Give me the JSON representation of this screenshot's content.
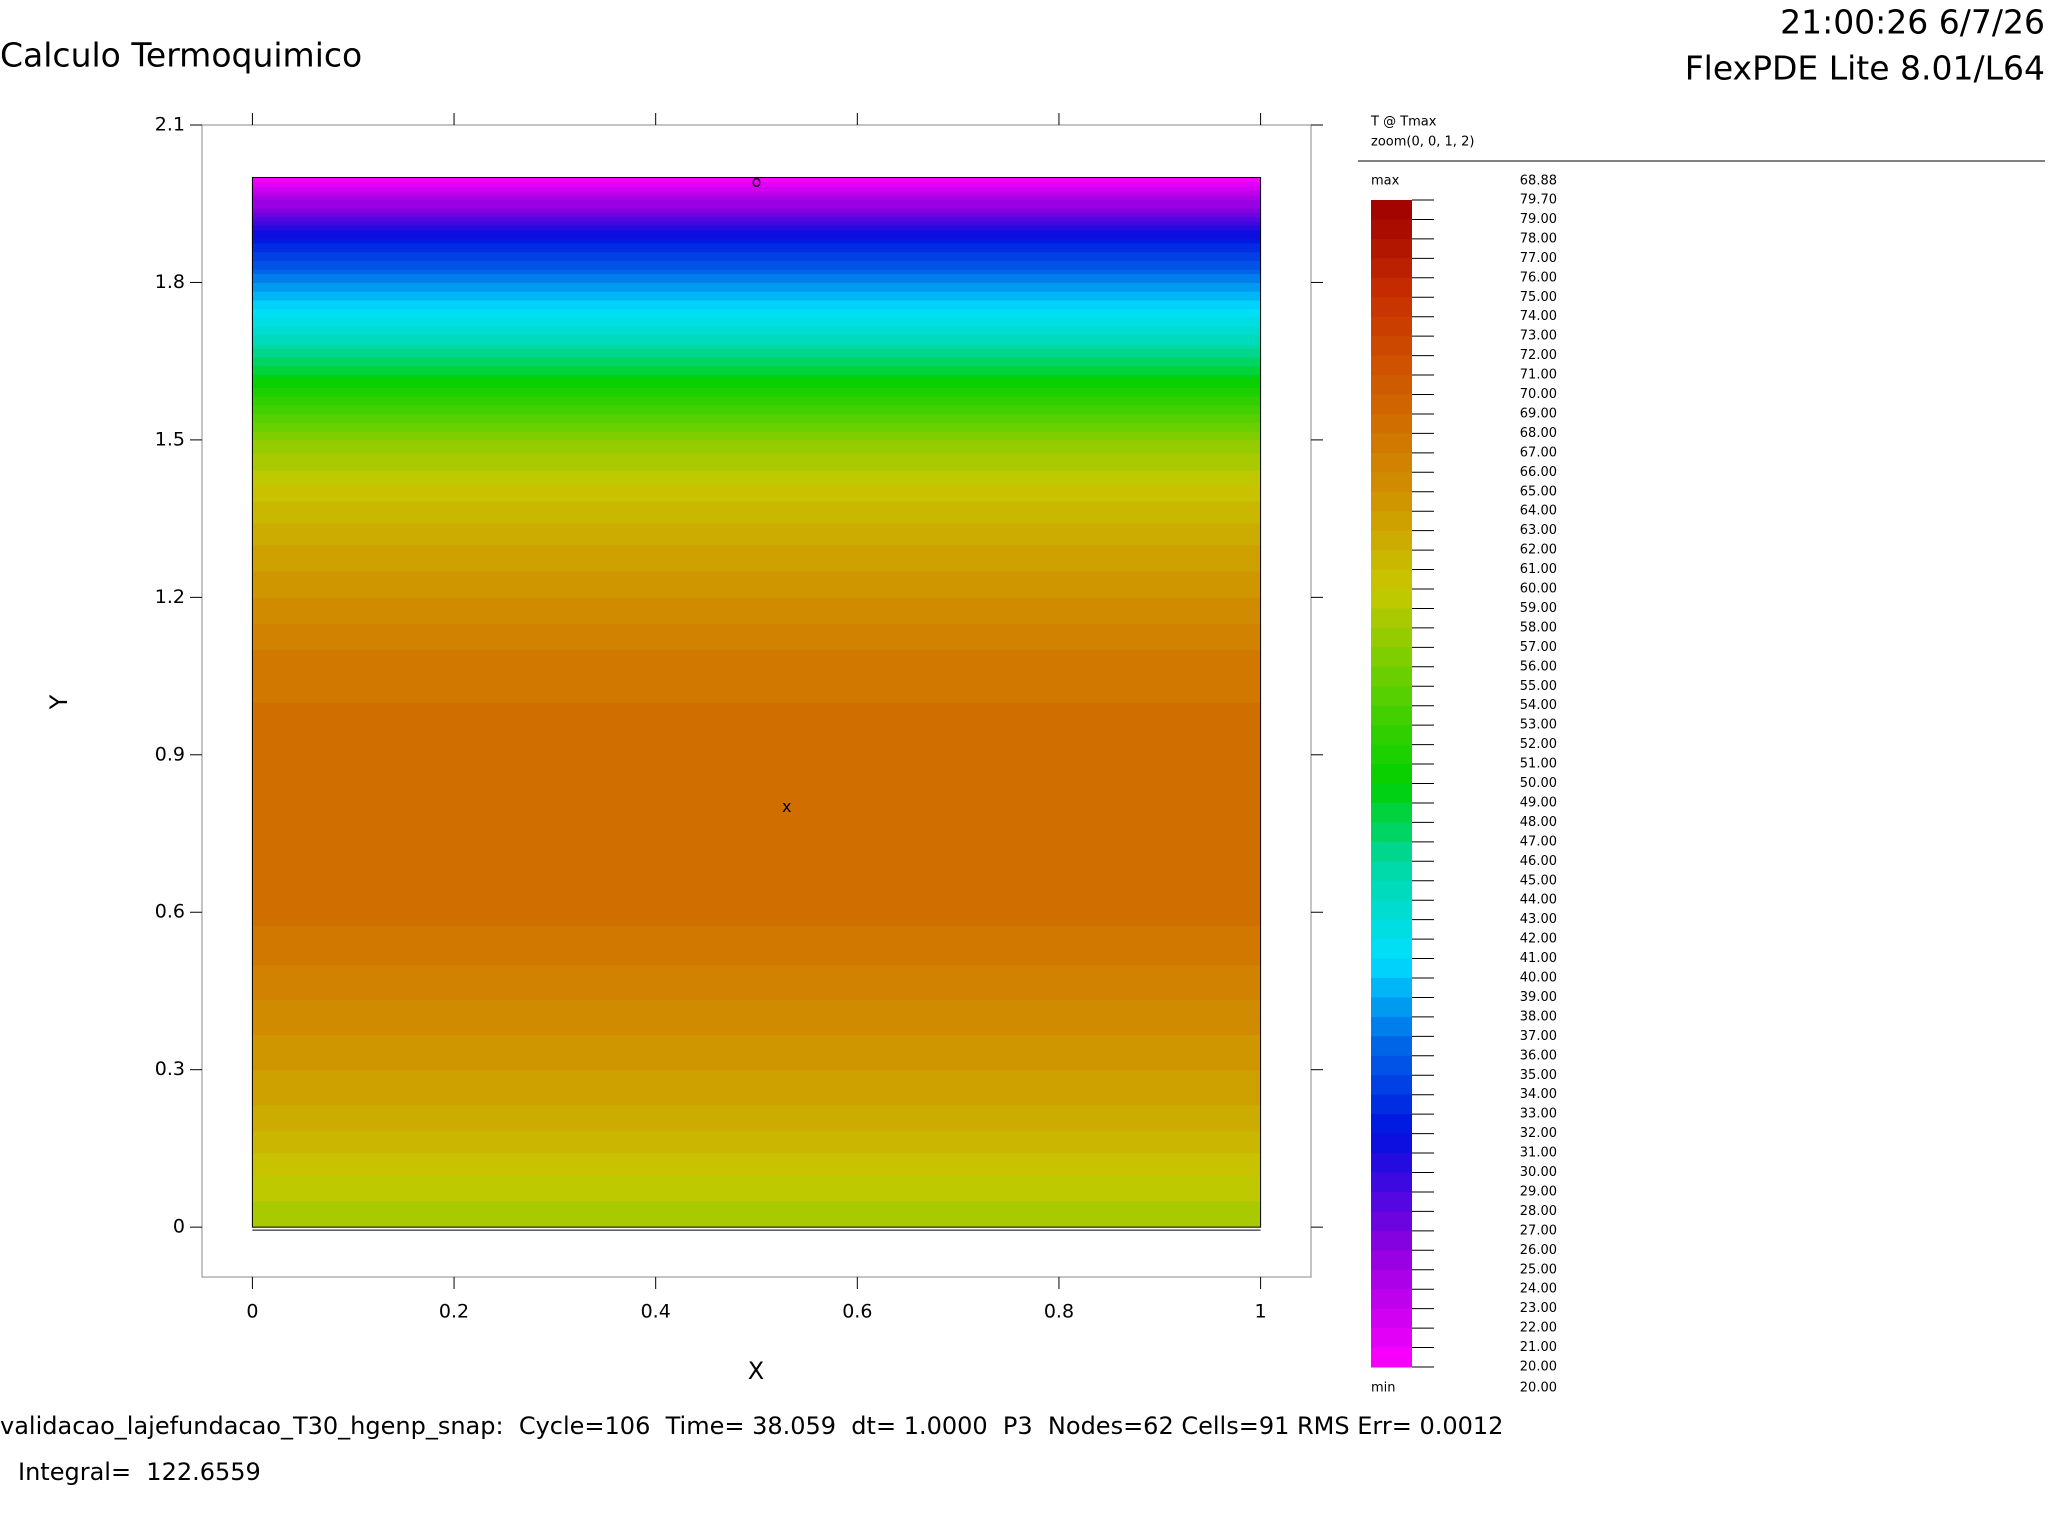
{
  "header": {
    "title": "Calculo Termoquimico",
    "timestamp": "21:00:26 6/7/26",
    "version": "FlexPDE Lite 8.01/L64"
  },
  "chart_data": {
    "type": "contour",
    "xlabel": "X",
    "ylabel": "Y",
    "xlim": [
      -0.05,
      1.05
    ],
    "ylim": [
      -0.095,
      2.1
    ],
    "xticks": [
      0,
      0.2,
      0.4,
      0.6,
      0.8,
      1
    ],
    "yticks": [
      0,
      0.3,
      0.6,
      0.9,
      1.2,
      1.5,
      1.8,
      2.1
    ],
    "domain": {
      "x": [
        0,
        1
      ],
      "y": [
        0,
        2
      ]
    },
    "field": {
      "y": [
        0,
        0.1,
        0.2,
        0.3,
        0.4,
        0.5,
        0.6,
        0.7,
        0.8,
        0.9,
        1.0,
        1.1,
        1.2,
        1.3,
        1.4,
        1.5,
        1.6,
        1.7,
        1.8,
        1.9,
        2.0
      ],
      "values": [
        58,
        60,
        62.5,
        64,
        65.5,
        67,
        68.3,
        68.8,
        68.88,
        68.7,
        68,
        67,
        65,
        63,
        60.5,
        57,
        51,
        44,
        38,
        31,
        20
      ]
    },
    "annotations": [
      {
        "label": "o",
        "x": 0.5,
        "y": 1.99
      },
      {
        "label": "x",
        "x": 0.53,
        "y": 0.8
      }
    ],
    "colorscale": [
      [
        20,
        "#ff00ff"
      ],
      [
        26,
        "#9000e0"
      ],
      [
        32,
        "#0010e0"
      ],
      [
        37,
        "#0070e8"
      ],
      [
        41,
        "#00e0ff"
      ],
      [
        46,
        "#00d8a0"
      ],
      [
        50,
        "#00d000"
      ],
      [
        55,
        "#60d000"
      ],
      [
        60,
        "#c8c800"
      ],
      [
        65,
        "#d09000"
      ],
      [
        70,
        "#d06000"
      ],
      [
        75,
        "#c83000"
      ],
      [
        79.7,
        "#a00000"
      ]
    ],
    "legend": {
      "title": "T @ Tmax",
      "subtitle": "zoom(0, 0, 1, 2)",
      "max_label": "max",
      "max": 68.88,
      "min_label": "min",
      "min": {
        "value": 20,
        "label": "20.00"
      },
      "levels": [
        {
          "value": 79.7,
          "label": "79.70"
        },
        {
          "value": 79,
          "label": "79.00"
        },
        {
          "value": 78,
          "label": "78.00"
        },
        {
          "value": 77,
          "label": "77.00"
        },
        {
          "value": 76,
          "label": "76.00"
        },
        {
          "value": 75,
          "label": "75.00"
        },
        {
          "value": 74,
          "label": "74.00"
        },
        {
          "value": 73,
          "label": "73.00"
        },
        {
          "value": 72,
          "label": "72.00"
        },
        {
          "value": 71,
          "label": "71.00"
        },
        {
          "value": 70,
          "label": "70.00"
        },
        {
          "value": 69,
          "label": "69.00"
        },
        {
          "value": 68,
          "label": "68.00"
        },
        {
          "value": 67,
          "label": "67.00"
        },
        {
          "value": 66,
          "label": "66.00"
        },
        {
          "value": 65,
          "label": "65.00"
        },
        {
          "value": 64,
          "label": "64.00"
        },
        {
          "value": 63,
          "label": "63.00"
        },
        {
          "value": 62,
          "label": "62.00"
        },
        {
          "value": 61,
          "label": "61.00"
        },
        {
          "value": 60,
          "label": "60.00"
        },
        {
          "value": 59,
          "label": "59.00"
        },
        {
          "value": 58,
          "label": "58.00"
        },
        {
          "value": 57,
          "label": "57.00"
        },
        {
          "value": 56,
          "label": "56.00"
        },
        {
          "value": 55,
          "label": "55.00"
        },
        {
          "value": 54,
          "label": "54.00"
        },
        {
          "value": 53,
          "label": "53.00"
        },
        {
          "value": 52,
          "label": "52.00"
        },
        {
          "value": 51,
          "label": "51.00"
        },
        {
          "value": 50,
          "label": "50.00"
        },
        {
          "value": 49,
          "label": "49.00"
        },
        {
          "value": 48,
          "label": "48.00"
        },
        {
          "value": 47,
          "label": "47.00"
        },
        {
          "value": 46,
          "label": "46.00"
        },
        {
          "value": 45,
          "label": "45.00"
        },
        {
          "value": 44,
          "label": "44.00"
        },
        {
          "value": 43,
          "label": "43.00"
        },
        {
          "value": 42,
          "label": "42.00"
        },
        {
          "value": 41,
          "label": "41.00"
        },
        {
          "value": 40,
          "label": "40.00"
        },
        {
          "value": 39,
          "label": "39.00"
        },
        {
          "value": 38,
          "label": "38.00"
        },
        {
          "value": 37,
          "label": "37.00"
        },
        {
          "value": 36,
          "label": "36.00"
        },
        {
          "value": 35,
          "label": "35.00"
        },
        {
          "value": 34,
          "label": "34.00"
        },
        {
          "value": 33,
          "label": "33.00"
        },
        {
          "value": 32,
          "label": "32.00"
        },
        {
          "value": 31,
          "label": "31.00"
        },
        {
          "value": 30,
          "label": "30.00"
        },
        {
          "value": 29,
          "label": "29.00"
        },
        {
          "value": 28,
          "label": "28.00"
        },
        {
          "value": 27,
          "label": "27.00"
        },
        {
          "value": 26,
          "label": "26.00"
        },
        {
          "value": 25,
          "label": "25.00"
        },
        {
          "value": 24,
          "label": "24.00"
        },
        {
          "value": 23,
          "label": "23.00"
        },
        {
          "value": 22,
          "label": "22.00"
        },
        {
          "value": 21,
          "label": "21.00"
        },
        {
          "value": 20,
          "label": "20.00"
        }
      ]
    }
  },
  "footer": {
    "status": "validacao_lajefundacao_T30_hgenp_snap:  Cycle=106  Time= 38.059  dt= 1.0000  P3  Nodes=62 Cells=91 RMS Err= 0.0012",
    "integral": "Integral=  122.6559"
  }
}
